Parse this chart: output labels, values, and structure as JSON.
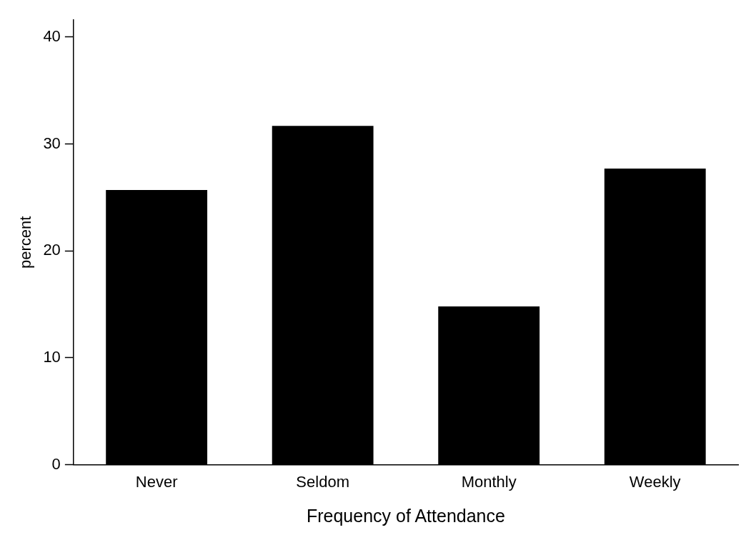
{
  "chart_data": {
    "type": "bar",
    "xlabel": "Frequency of Attendance",
    "ylabel": "percent",
    "categories": [
      "Never",
      "Seldom",
      "Monthly",
      "Weekly"
    ],
    "values": [
      25.7,
      31.7,
      14.8,
      27.7
    ],
    "color": "#000000",
    "ylim": [
      0,
      41.6
    ],
    "yticks": [
      0,
      10,
      20,
      30,
      40
    ],
    "grid": false,
    "legend": false
  }
}
